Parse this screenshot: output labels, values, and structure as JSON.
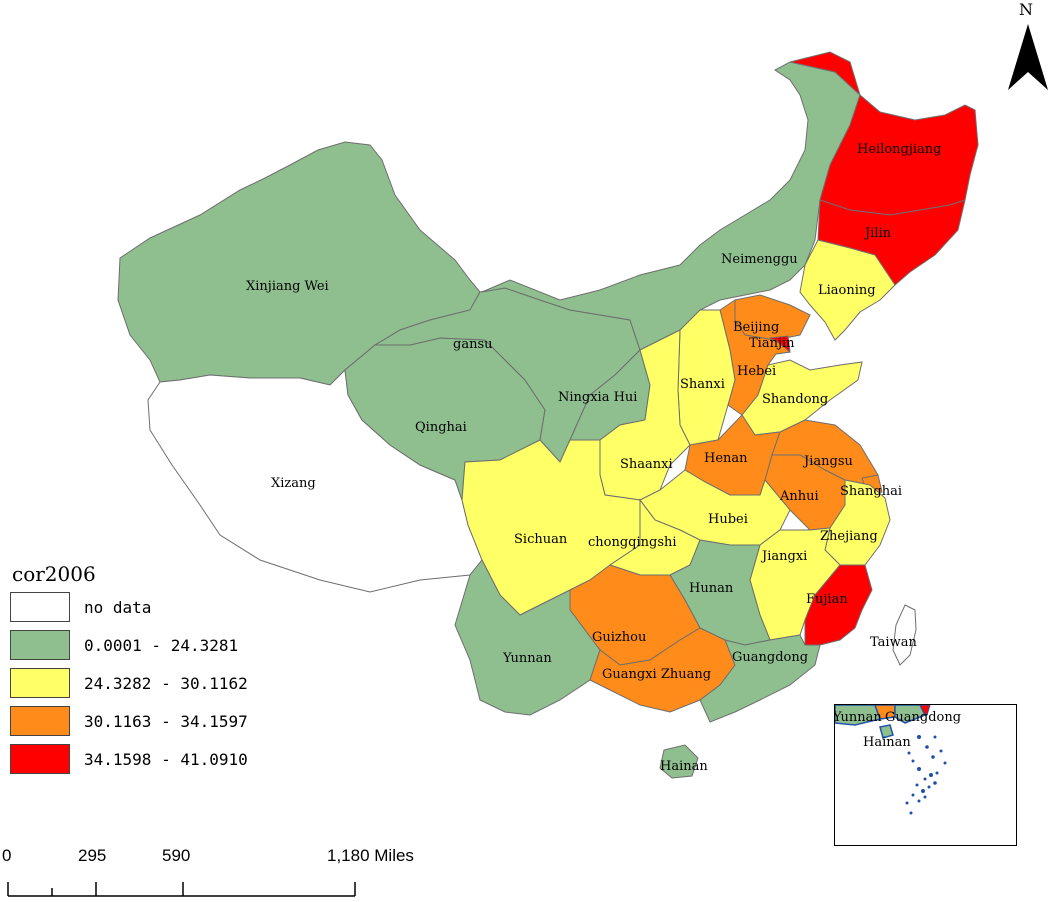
{
  "legend": {
    "title": "cor2006",
    "classes": [
      {
        "label": "no data",
        "color": "#ffffff"
      },
      {
        "label": "0.0001 - 24.3281",
        "color": "#8fbf8f"
      },
      {
        "label": "24.3282 - 30.1162",
        "color": "#ffff66"
      },
      {
        "label": "30.1163 - 34.1597",
        "color": "#ff8c1a"
      },
      {
        "label": "34.1598 - 41.0910",
        "color": "#ff0000"
      }
    ]
  },
  "north_arrow": {
    "label": "N"
  },
  "scale_bar": {
    "ticks": [
      "0",
      "295",
      "590",
      "1,180 Miles"
    ]
  },
  "provinces": {
    "heilongjiang": {
      "name": "Heilongjiang",
      "class": 4
    },
    "jilin": {
      "name": "Jilin",
      "class": 4
    },
    "liaoning": {
      "name": "Liaoning",
      "class": 2
    },
    "neimenggu": {
      "name": "Neimenggu",
      "class": 1
    },
    "xinjiang": {
      "name": "Xinjiang Wei",
      "class": 1
    },
    "gansu": {
      "name": "gansu",
      "class": 1
    },
    "qinghai": {
      "name": "Qinghai",
      "class": 1
    },
    "xizang": {
      "name": "Xizang",
      "class": 0
    },
    "ningxia": {
      "name": "Ningxia Hui",
      "class": 1
    },
    "shaanxi": {
      "name": "Shaanxi",
      "class": 2
    },
    "shanxi": {
      "name": "Shanxi",
      "class": 2
    },
    "beijing": {
      "name": "Beijing",
      "class": 3
    },
    "tianjin": {
      "name": "Tianjin",
      "class": 4
    },
    "hebei": {
      "name": "Hebei",
      "class": 3
    },
    "shandong": {
      "name": "Shandong",
      "class": 2
    },
    "henan": {
      "name": "Henan",
      "class": 3
    },
    "jiangsu": {
      "name": "Jiangsu",
      "class": 3
    },
    "anhui": {
      "name": "Anhui",
      "class": 3
    },
    "shanghai": {
      "name": "Shanghai",
      "class": 3
    },
    "hubei": {
      "name": "Hubei",
      "class": 2
    },
    "zhejiang": {
      "name": "Zhejiang",
      "class": 2
    },
    "sichuan": {
      "name": "Sichuan",
      "class": 2
    },
    "chongqing": {
      "name": "chongqingshi",
      "class": 2
    },
    "jiangxi": {
      "name": "Jiangxi",
      "class": 2
    },
    "hunan": {
      "name": "Hunan",
      "class": 1
    },
    "guizhou": {
      "name": "Guizhou",
      "class": 3
    },
    "fujian": {
      "name": "Fujian",
      "class": 4
    },
    "yunnan": {
      "name": "Yunnan",
      "class": 1
    },
    "guangxi": {
      "name": "Guangxi Zhuang",
      "class": 3
    },
    "guangdong": {
      "name": "Guangdong",
      "class": 1
    },
    "hainan": {
      "name": "Hainan",
      "class": 1
    },
    "taiwan": {
      "name": "Taiwan",
      "class": 0
    }
  },
  "inset": {
    "labels": {
      "yunnan": "Yunnan",
      "guangdong": "Guangdong",
      "hainan": "Hainan"
    }
  }
}
